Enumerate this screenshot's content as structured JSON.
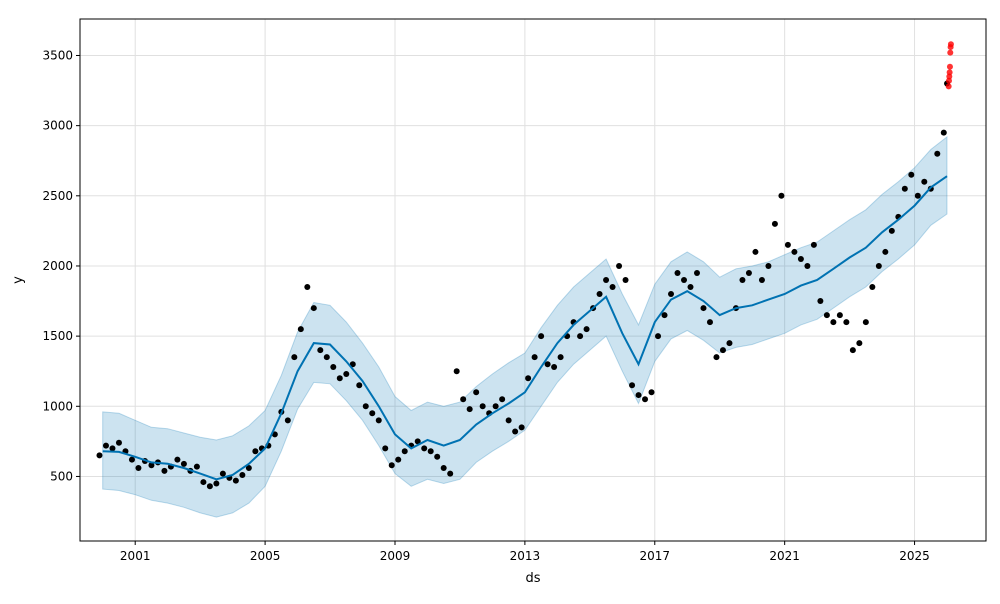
{
  "chart_data": {
    "type": "line",
    "title": "",
    "xlabel": "ds",
    "ylabel": "y",
    "xlim": [
      1999.3,
      2027.2
    ],
    "ylim": [
      40,
      3760
    ],
    "grid": true,
    "x_ticks": [
      {
        "value": 2001,
        "label": "2001"
      },
      {
        "value": 2005,
        "label": "2005"
      },
      {
        "value": 2009,
        "label": "2009"
      },
      {
        "value": 2013,
        "label": "2013"
      },
      {
        "value": 2017,
        "label": "2017"
      },
      {
        "value": 2021,
        "label": "2021"
      },
      {
        "value": 2025,
        "label": "2025"
      }
    ],
    "y_ticks": [
      {
        "value": 500,
        "label": "500"
      },
      {
        "value": 1000,
        "label": "1000"
      },
      {
        "value": 1500,
        "label": "1500"
      },
      {
        "value": 2000,
        "label": "2000"
      },
      {
        "value": 2500,
        "label": "2500"
      },
      {
        "value": 3000,
        "label": "3000"
      },
      {
        "value": 3500,
        "label": "3500"
      }
    ],
    "colors": {
      "forecast": "#0072B2",
      "interval": "#0072B2",
      "actual": "#000000",
      "recent": "#ff0000",
      "grid": "#e0e0e0"
    },
    "series": [
      {
        "role": "forecast",
        "x": [
          2000.0,
          2000.5,
          2001.0,
          2001.5,
          2002.0,
          2002.5,
          2003.0,
          2003.5,
          2004.0,
          2004.5,
          2005.0,
          2005.5,
          2006.0,
          2006.5,
          2007.0,
          2007.5,
          2008.0,
          2008.5,
          2009.0,
          2009.5,
          2010.0,
          2010.5,
          2011.0,
          2011.5,
          2012.0,
          2012.5,
          2013.0,
          2013.5,
          2014.0,
          2014.5,
          2015.0,
          2015.5,
          2016.0,
          2016.5,
          2017.0,
          2017.5,
          2018.0,
          2018.5,
          2019.0,
          2019.5,
          2020.0,
          2020.5,
          2021.0,
          2021.5,
          2022.0,
          2022.5,
          2023.0,
          2023.5,
          2024.0,
          2024.5,
          2025.0,
          2025.5,
          2026.0
        ],
        "y": [
          680,
          675,
          640,
          600,
          590,
          560,
          520,
          480,
          510,
          590,
          700,
          950,
          1250,
          1450,
          1440,
          1320,
          1180,
          1000,
          800,
          700,
          760,
          720,
          760,
          870,
          950,
          1020,
          1100,
          1280,
          1450,
          1580,
          1680,
          1780,
          1520,
          1300,
          1600,
          1760,
          1820,
          1750,
          1650,
          1700,
          1720,
          1760,
          1800,
          1860,
          1900,
          1980,
          2060,
          2130,
          2240,
          2330,
          2430,
          2560,
          2640
        ]
      },
      {
        "role": "interval_upper",
        "x": [
          2000.0,
          2000.5,
          2001.0,
          2001.5,
          2002.0,
          2002.5,
          2003.0,
          2003.5,
          2004.0,
          2004.5,
          2005.0,
          2005.5,
          2006.0,
          2006.5,
          2007.0,
          2007.5,
          2008.0,
          2008.5,
          2009.0,
          2009.5,
          2010.0,
          2010.5,
          2011.0,
          2011.5,
          2012.0,
          2012.5,
          2013.0,
          2013.5,
          2014.0,
          2014.5,
          2015.0,
          2015.5,
          2016.0,
          2016.5,
          2017.0,
          2017.5,
          2018.0,
          2018.5,
          2019.0,
          2019.5,
          2020.0,
          2020.5,
          2021.0,
          2021.5,
          2022.0,
          2022.5,
          2023.0,
          2023.5,
          2024.0,
          2024.5,
          2025.0,
          2025.5,
          2026.0
        ],
        "y": [
          960,
          950,
          900,
          850,
          840,
          810,
          780,
          760,
          790,
          860,
          970,
          1220,
          1530,
          1740,
          1720,
          1600,
          1450,
          1280,
          1070,
          970,
          1030,
          1000,
          1030,
          1140,
          1230,
          1310,
          1380,
          1560,
          1720,
          1850,
          1950,
          2050,
          1800,
          1580,
          1870,
          2030,
          2100,
          2030,
          1920,
          1980,
          2000,
          2030,
          2080,
          2130,
          2170,
          2250,
          2330,
          2400,
          2510,
          2600,
          2700,
          2830,
          2920
        ]
      },
      {
        "role": "interval_lower",
        "x": [
          2000.0,
          2000.5,
          2001.0,
          2001.5,
          2002.0,
          2002.5,
          2003.0,
          2003.5,
          2004.0,
          2004.5,
          2005.0,
          2005.5,
          2006.0,
          2006.5,
          2007.0,
          2007.5,
          2008.0,
          2008.5,
          2009.0,
          2009.5,
          2010.0,
          2010.5,
          2011.0,
          2011.5,
          2012.0,
          2012.5,
          2013.0,
          2013.5,
          2014.0,
          2014.5,
          2015.0,
          2015.5,
          2016.0,
          2016.5,
          2017.0,
          2017.5,
          2018.0,
          2018.5,
          2019.0,
          2019.5,
          2020.0,
          2020.5,
          2021.0,
          2021.5,
          2022.0,
          2022.5,
          2023.0,
          2023.5,
          2024.0,
          2024.5,
          2025.0,
          2025.5,
          2026.0
        ],
        "y": [
          410,
          400,
          370,
          330,
          310,
          280,
          240,
          210,
          240,
          310,
          430,
          680,
          980,
          1170,
          1160,
          1040,
          900,
          720,
          520,
          430,
          480,
          450,
          480,
          600,
          680,
          750,
          830,
          1000,
          1170,
          1300,
          1400,
          1500,
          1250,
          1020,
          1320,
          1480,
          1540,
          1470,
          1380,
          1420,
          1440,
          1480,
          1520,
          1580,
          1620,
          1700,
          1780,
          1850,
          1960,
          2050,
          2150,
          2290,
          2370
        ]
      },
      {
        "role": "actual",
        "x": [
          1999.9,
          2000.1,
          2000.3,
          2000.5,
          2000.7,
          2000.9,
          2001.1,
          2001.3,
          2001.5,
          2001.7,
          2001.9,
          2002.1,
          2002.3,
          2002.5,
          2002.7,
          2002.9,
          2003.1,
          2003.3,
          2003.5,
          2003.7,
          2003.9,
          2004.1,
          2004.3,
          2004.5,
          2004.7,
          2004.9,
          2005.1,
          2005.3,
          2005.5,
          2005.7,
          2005.9,
          2006.1,
          2006.3,
          2006.5,
          2006.7,
          2006.9,
          2007.1,
          2007.3,
          2007.5,
          2007.7,
          2007.9,
          2008.1,
          2008.3,
          2008.5,
          2008.7,
          2008.9,
          2009.1,
          2009.3,
          2009.5,
          2009.7,
          2009.9,
          2010.1,
          2010.3,
          2010.5,
          2010.7,
          2010.9,
          2011.1,
          2011.3,
          2011.5,
          2011.7,
          2011.9,
          2012.1,
          2012.3,
          2012.5,
          2012.7,
          2012.9,
          2013.1,
          2013.3,
          2013.5,
          2013.7,
          2013.9,
          2014.1,
          2014.3,
          2014.5,
          2014.7,
          2014.9,
          2015.1,
          2015.3,
          2015.5,
          2015.7,
          2015.9,
          2016.1,
          2016.3,
          2016.5,
          2016.7,
          2016.9,
          2017.1,
          2017.3,
          2017.5,
          2017.7,
          2017.9,
          2018.1,
          2018.3,
          2018.5,
          2018.7,
          2018.9,
          2019.1,
          2019.3,
          2019.5,
          2019.7,
          2019.9,
          2020.1,
          2020.3,
          2020.5,
          2020.7,
          2020.9,
          2021.1,
          2021.3,
          2021.5,
          2021.7,
          2021.9,
          2022.1,
          2022.3,
          2022.5,
          2022.7,
          2022.9,
          2023.1,
          2023.3,
          2023.5,
          2023.7,
          2023.9,
          2024.1,
          2024.3,
          2024.5,
          2024.7,
          2024.9,
          2025.1,
          2025.3,
          2025.5,
          2025.7,
          2025.9,
          2026.0
        ],
        "y": [
          650,
          720,
          700,
          740,
          680,
          620,
          560,
          610,
          580,
          600,
          540,
          570,
          620,
          590,
          540,
          570,
          460,
          430,
          450,
          520,
          490,
          470,
          510,
          560,
          680,
          700,
          720,
          800,
          960,
          900,
          1350,
          1550,
          1850,
          1700,
          1400,
          1350,
          1280,
          1200,
          1230,
          1300,
          1150,
          1000,
          950,
          900,
          700,
          580,
          620,
          680,
          720,
          750,
          700,
          680,
          640,
          560,
          520,
          1250,
          1050,
          980,
          1100,
          1000,
          950,
          1000,
          1050,
          900,
          820,
          850,
          1200,
          1350,
          1500,
          1300,
          1280,
          1350,
          1500,
          1600,
          1500,
          1550,
          1700,
          1800,
          1900,
          1850,
          2000,
          1900,
          1150,
          1080,
          1050,
          1100,
          1500,
          1650,
          1800,
          1950,
          1900,
          1850,
          1950,
          1700,
          1600,
          1350,
          1400,
          1450,
          1700,
          1900,
          1950,
          2100,
          1900,
          2000,
          2300,
          2500,
          2150,
          2100,
          2050,
          2000,
          2150,
          1750,
          1650,
          1600,
          1650,
          1600,
          1400,
          1450,
          1600,
          1850,
          2000,
          2100,
          2250,
          2350,
          2550,
          2650,
          2500,
          2600,
          2550,
          2800,
          2950,
          3300
        ]
      },
      {
        "role": "recent",
        "x": [
          2026.05,
          2026.06,
          2026.07,
          2026.08,
          2026.09,
          2026.1,
          2026.11,
          2026.12
        ],
        "y": [
          3280,
          3320,
          3350,
          3380,
          3420,
          3520,
          3560,
          3580
        ]
      }
    ]
  }
}
